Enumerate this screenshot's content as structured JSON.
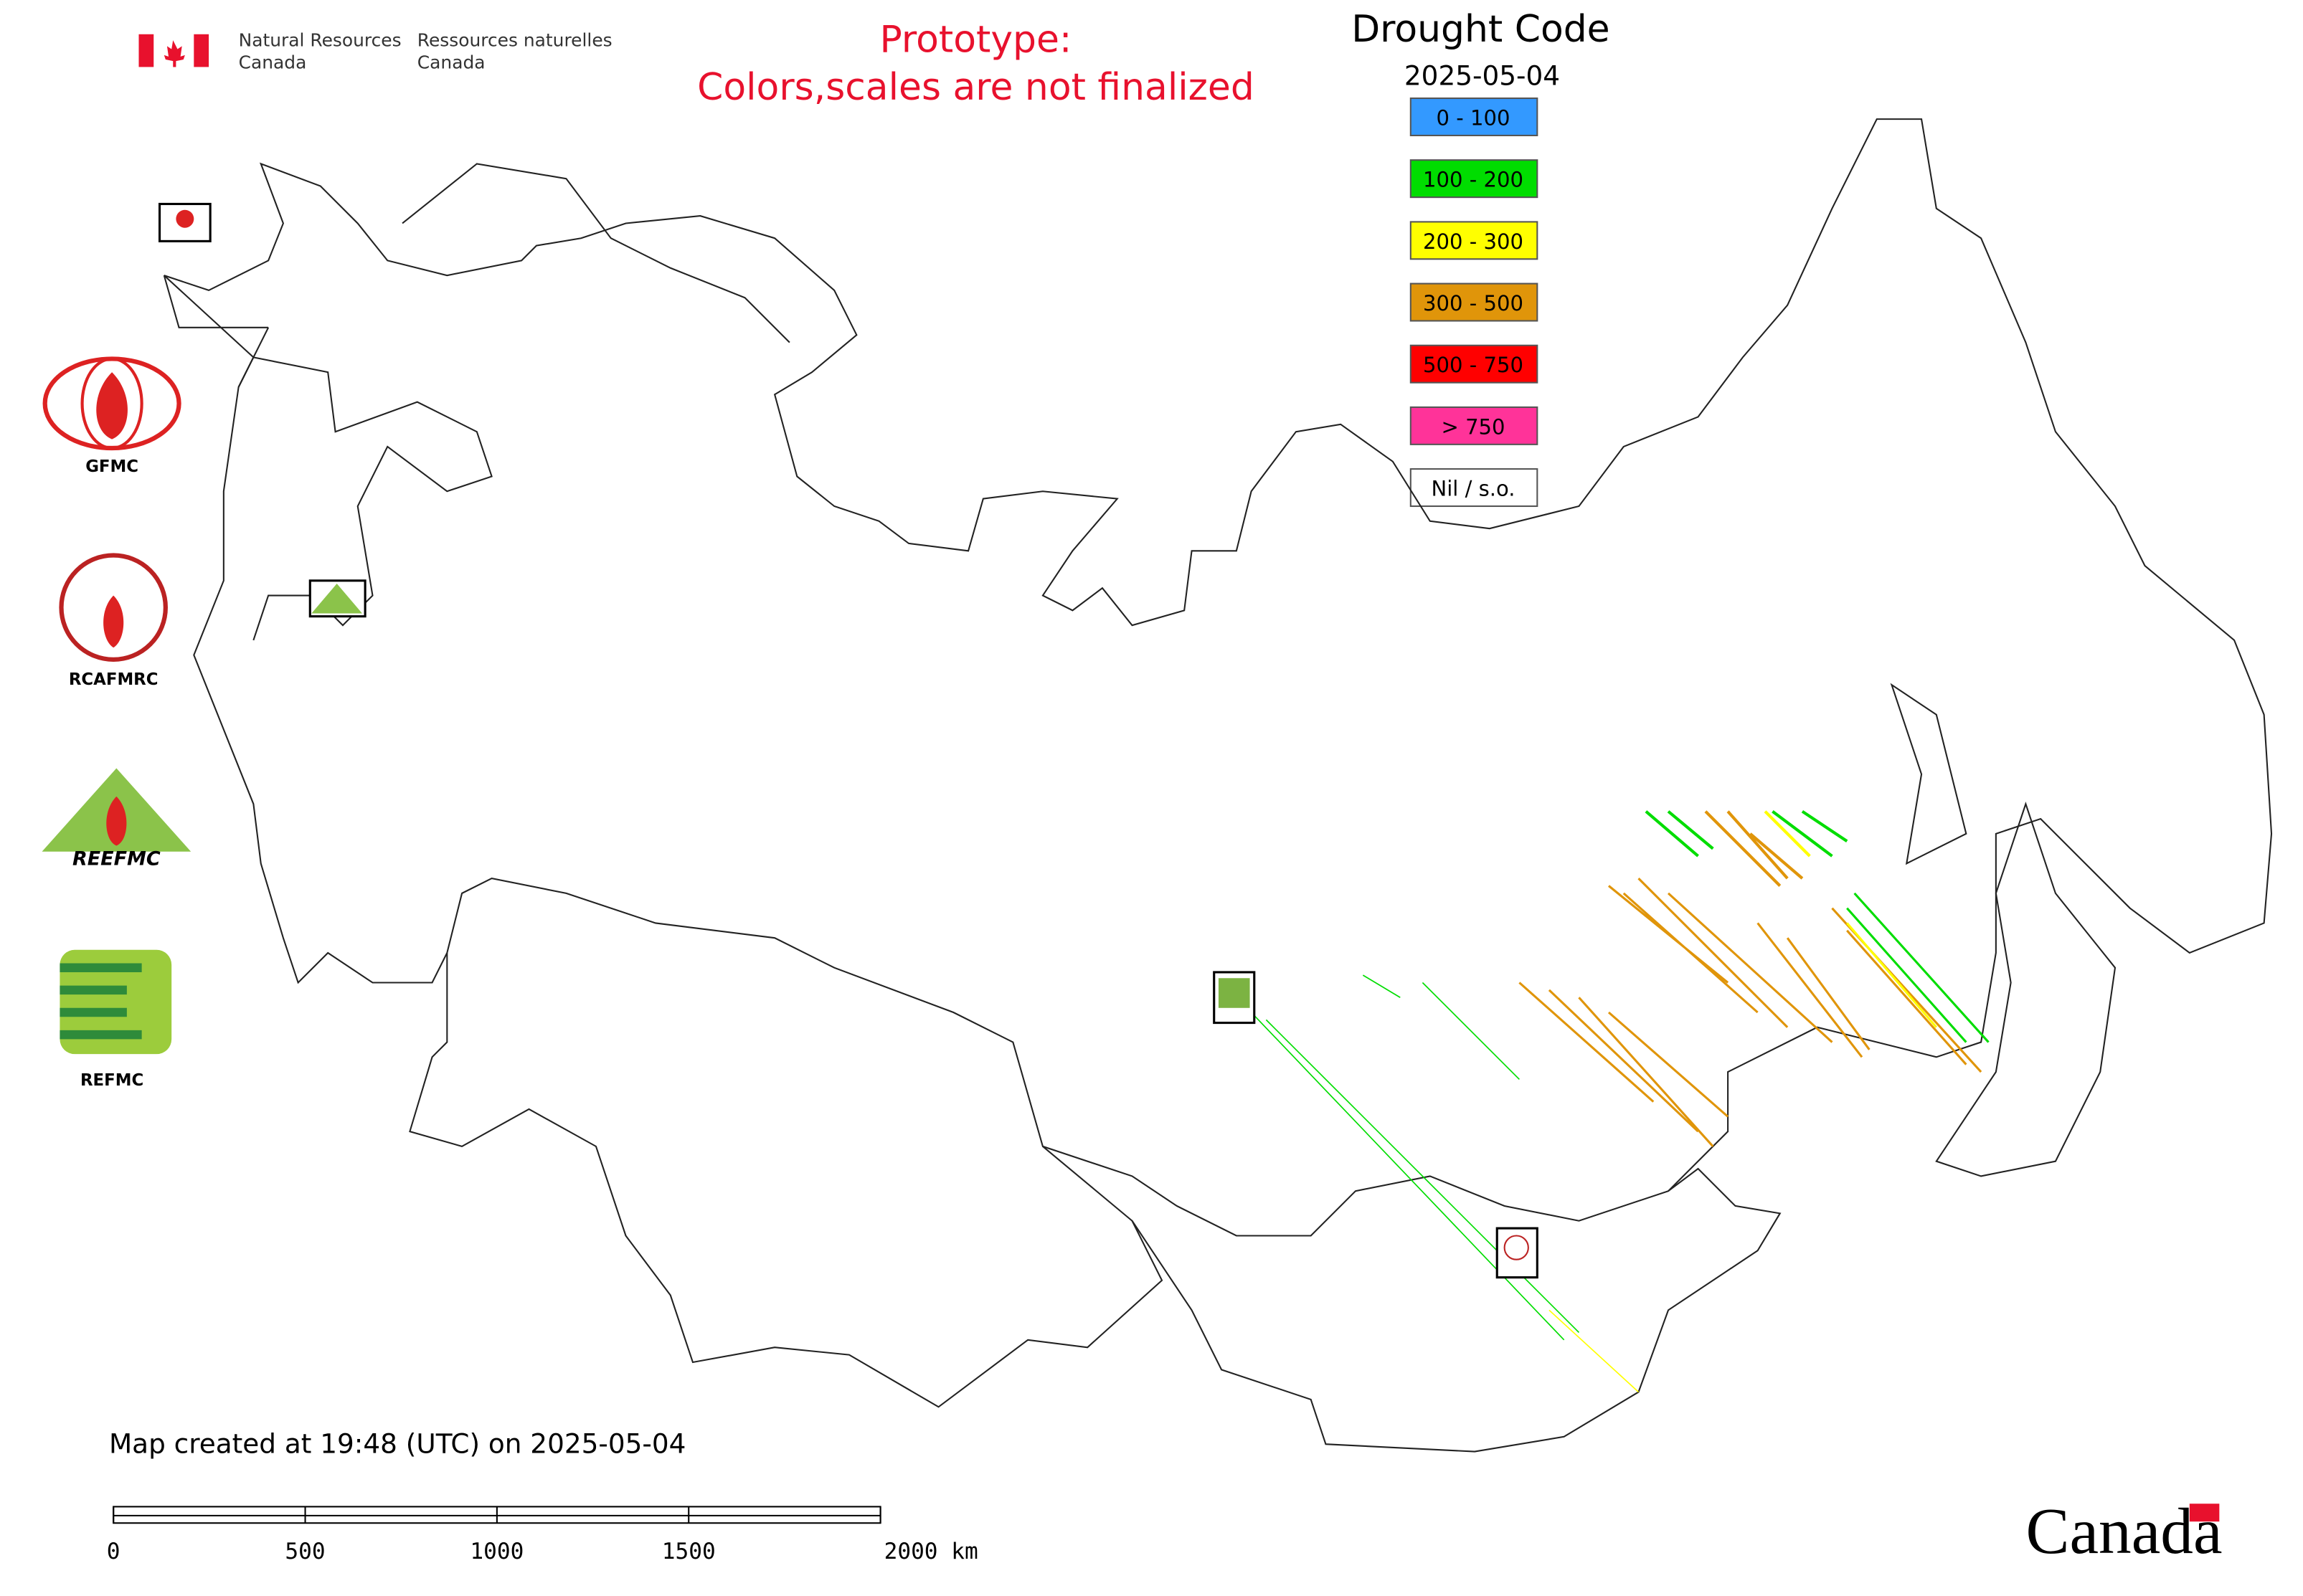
{
  "header": {
    "department_en": [
      "Natural Resources",
      "Canada"
    ],
    "department_fr": [
      "Ressources naturelles",
      "Canada"
    ],
    "notice": [
      "Prototype:",
      "Colors,scales are not finalized"
    ]
  },
  "legend": {
    "title": "Drought Code",
    "date": "2025-05-04",
    "items": [
      {
        "label": "0 - 100",
        "color": "#3399ff"
      },
      {
        "label": "100 - 200",
        "color": "#00dd00"
      },
      {
        "label": "200 - 300",
        "color": "#ffff00"
      },
      {
        "label": "300 - 500",
        "color": "#e0950a"
      },
      {
        "label": "500 - 750",
        "color": "#ff0000"
      },
      {
        "label": "> 750",
        "color": "#ff3399"
      },
      {
        "label": "Nil / s.o.",
        "color": "#ffffff"
      }
    ]
  },
  "logos": [
    "GFMC",
    "RCAFMRC",
    "REEFMC",
    "REFMC"
  ],
  "footer": {
    "created": "Map created at 19:48 (UTC) on 2025-05-04",
    "scale_labels": [
      "0",
      "500",
      "1000",
      "1500",
      "2000 km"
    ],
    "wordmark": "Canada"
  }
}
